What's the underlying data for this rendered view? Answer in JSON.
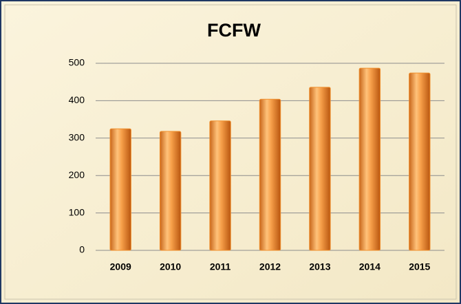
{
  "chart_data": {
    "type": "bar",
    "title": "FCFW",
    "categories": [
      "2009",
      "2010",
      "2011",
      "2012",
      "2013",
      "2014",
      "2015"
    ],
    "values": [
      325,
      318,
      346,
      404,
      436,
      487,
      474
    ],
    "color": "#f0902e",
    "ylim": [
      0,
      500
    ],
    "yticks": [
      0,
      100,
      200,
      300,
      400,
      500
    ],
    "grid": true
  }
}
